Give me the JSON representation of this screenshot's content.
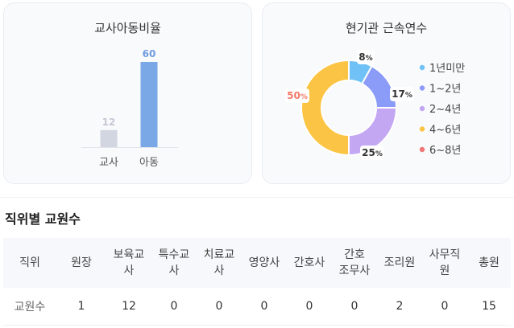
{
  "ratio_card": {
    "title": "교사아동비율"
  },
  "tenure_card": {
    "title": "현기관 근속연수"
  },
  "chart_data": [
    {
      "type": "bar",
      "title": "교사아동비율",
      "categories": [
        "교사",
        "아동"
      ],
      "values": [
        12,
        60
      ],
      "colors": [
        "#d2d6e1",
        "#7aa7e6"
      ],
      "label_colors": [
        "#c3c8d4",
        "#6f9be0"
      ],
      "ylim": [
        0,
        60
      ],
      "grid": false
    },
    {
      "type": "pie",
      "title": "현기관 근속연수",
      "labels": [
        "1년미만",
        "1~2년",
        "2~4년",
        "4~6년",
        "6~8년"
      ],
      "values": [
        8,
        17,
        25,
        50,
        0
      ],
      "value_labels": [
        "8%",
        "17%",
        "25%",
        "50%",
        ""
      ],
      "colors": [
        "#70c1f5",
        "#8b9cf8",
        "#c3a7f2",
        "#fcc444",
        "#f27777"
      ],
      "label_colors": [
        "#333333",
        "#333333",
        "#333333",
        "#f47a6a",
        "#333333"
      ],
      "legend_position": "right"
    }
  ],
  "staff_section": {
    "title": "직위별 교원수",
    "headers": [
      "직위",
      "원장",
      "보육교\n사",
      "특수교\n사",
      "치료교\n사",
      "영양사",
      "간호사",
      "간호\n조무사",
      "조리원",
      "사무직\n원",
      "총원"
    ],
    "row": [
      "교원수",
      "1",
      "12",
      "0",
      "0",
      "0",
      "0",
      "0",
      "2",
      "0",
      "15"
    ]
  }
}
